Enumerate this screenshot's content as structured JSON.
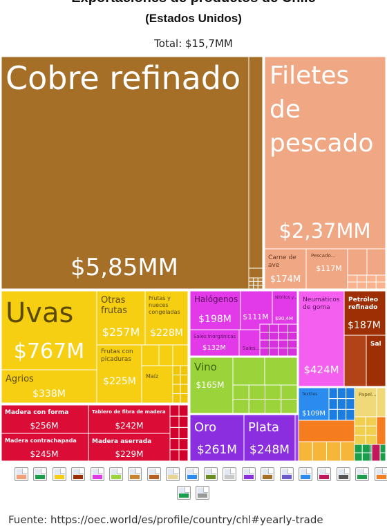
{
  "header": {
    "title": "Exportaciones de productos de Chile",
    "subtitle": "(Estados Unidos)",
    "total": "Total: $15,7MM"
  },
  "footer": {
    "source": "Fuente: https://oec.world/es/profile/country/chl#yearly-trade"
  },
  "colors": {
    "metals": "#a56f27",
    "animal": "#efa784",
    "vegetable": "#f6cf12",
    "chemicals": "#e23ae8",
    "plastics": "#9bd43a",
    "rubber": "#f55ff0",
    "minerals": "#9e2f05",
    "wood": "#db0c36",
    "precious": "#8a2ee0",
    "textiles": "#2b8bee",
    "paper": "#f0d978",
    "machinery": "#1b9e4b"
  },
  "chart_data": {
    "type": "treemap",
    "title": "Exportaciones de productos de Chile",
    "subtitle": "(Estados Unidos)",
    "total": "$15,7MM",
    "items": [
      {
        "name": "Cobre refinado",
        "value": "$5,85MM",
        "group": "metals"
      },
      {
        "name": "Filetes de pescado",
        "value": "$2,37MM",
        "group": "animal"
      },
      {
        "name": "Carne de ave",
        "value": "$174M",
        "group": "animal"
      },
      {
        "name": "Pescado...",
        "value": "$117M",
        "group": "animal"
      },
      {
        "name": "Uvas",
        "value": "$767M",
        "group": "vegetable"
      },
      {
        "name": "Otras frutas",
        "value": "$257M",
        "group": "vegetable"
      },
      {
        "name": "Frutas y nueces congeladas",
        "value": "$228M",
        "group": "vegetable"
      },
      {
        "name": "Frutas con picaduras",
        "value": "$225M",
        "group": "vegetable"
      },
      {
        "name": "Agrios",
        "value": "$338M",
        "group": "vegetable"
      },
      {
        "name": "Maíz",
        "value": "",
        "group": "vegetable"
      },
      {
        "name": "Halógenos",
        "value": "$198M",
        "group": "chemicals"
      },
      {
        "name": "",
        "value": "$111M",
        "group": "chemicals"
      },
      {
        "name": "Nitritos y...",
        "value": "$90,4M",
        "group": "chemicals"
      },
      {
        "name": "Sales inorgánicas",
        "value": "$132M",
        "group": "chemicals"
      },
      {
        "name": "Sales...",
        "value": "",
        "group": "chemicals"
      },
      {
        "name": "Vino",
        "value": "$165M",
        "group": "plastics"
      },
      {
        "name": "Neumáticos de goma",
        "value": "$424M",
        "group": "rubber"
      },
      {
        "name": "Petróleo refinado",
        "value": "$187M",
        "group": "minerals"
      },
      {
        "name": "Sal",
        "value": "",
        "group": "minerals"
      },
      {
        "name": "Madera con forma",
        "value": "$256M",
        "group": "wood"
      },
      {
        "name": "Tablero de fibra de madera",
        "value": "$242M",
        "group": "wood"
      },
      {
        "name": "Madera contrachapada",
        "value": "$245M",
        "group": "wood"
      },
      {
        "name": "Madera aserrada",
        "value": "$229M",
        "group": "wood"
      },
      {
        "name": "Oro",
        "value": "$261M",
        "group": "precious"
      },
      {
        "name": "Plata",
        "value": "$248M",
        "group": "precious"
      },
      {
        "name": "Textiles",
        "value": "$109M",
        "group": "textiles"
      },
      {
        "name": "Papel...",
        "value": "",
        "group": "paper"
      }
    ]
  },
  "legend_icons": [
    "animal-products-icon",
    "vegetable-products-icon",
    "foodstuffs-icon",
    "mineral-products-icon",
    "chemical-products-icon",
    "plastics-icon",
    "animal-hides-icon",
    "wood-products-icon",
    "paper-goods-icon",
    "textiles-icon",
    "footwear-icon",
    "stone-glass-icon",
    "precious-metals-icon",
    "metals-icon",
    "machines-icon",
    "transportation-icon",
    "instruments-icon",
    "weapons-icon",
    "miscellaneous-icon",
    "arts-antiques-icon",
    "animal-vegetable-fats-icon",
    "unknown-icon"
  ]
}
